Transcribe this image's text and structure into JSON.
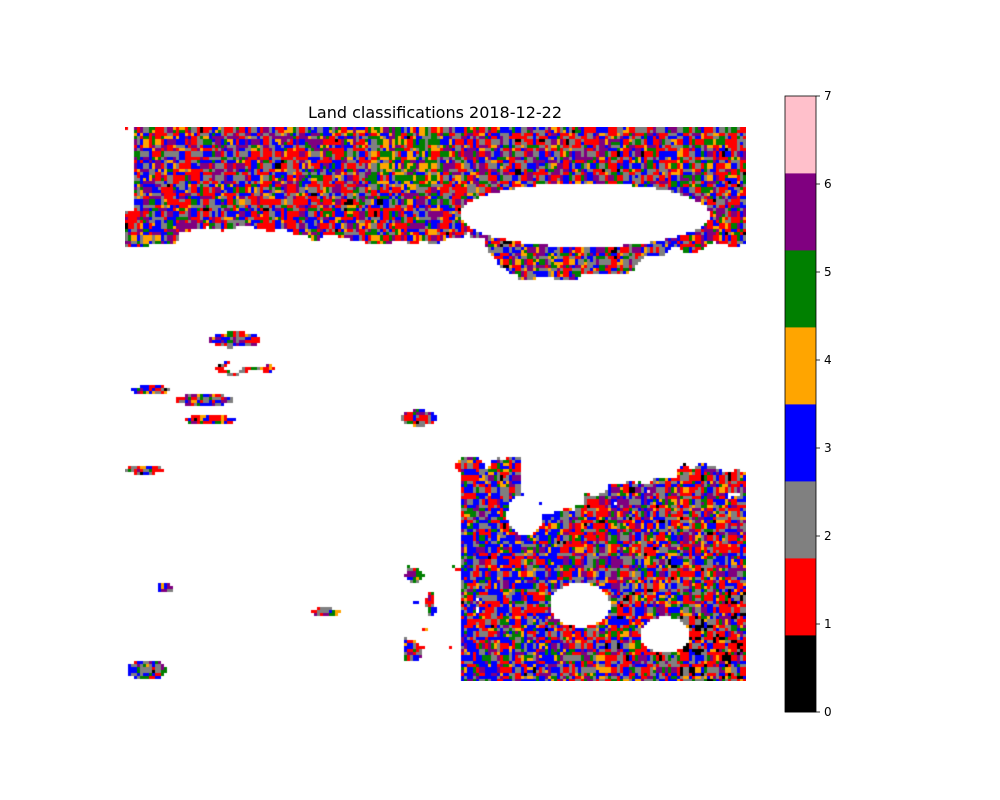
{
  "chart_data": {
    "type": "heatmap",
    "title": "Land classifications 2018-12-22",
    "axes_visible": false,
    "background": "#ffffff",
    "colorbar": {
      "orientation": "vertical",
      "placement": "right",
      "vmin": 0,
      "vmax": 7,
      "tick_labels": [
        "0",
        "1",
        "2",
        "3",
        "4",
        "5",
        "6",
        "7"
      ],
      "classes": [
        {
          "value": 0,
          "color": "#000000"
        },
        {
          "value": 1,
          "color": "#ff0000"
        },
        {
          "value": 2,
          "color": "#808080"
        },
        {
          "value": 3,
          "color": "#0000ff"
        },
        {
          "value": 4,
          "color": "#ffa500"
        },
        {
          "value": 5,
          "color": "#008000"
        },
        {
          "value": 6,
          "color": "#800080"
        },
        {
          "value": 7,
          "color": "#ffc0cb"
        }
      ]
    }
  }
}
